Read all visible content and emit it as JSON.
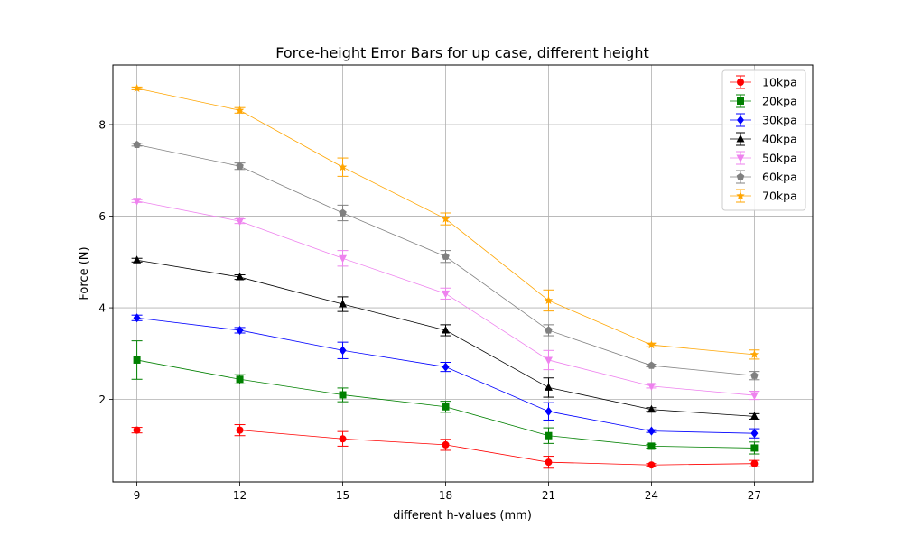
{
  "chart_data": {
    "type": "line",
    "title": "Force-height Error Bars for up case, different height",
    "xlabel": "different h-values (mm)",
    "ylabel": "Force (N)",
    "x": [
      9,
      12,
      15,
      18,
      21,
      24,
      27
    ],
    "x_ticks": [
      "9",
      "12",
      "15",
      "18",
      "21",
      "24",
      "27"
    ],
    "y_ticks": [
      "2",
      "4",
      "6",
      "8"
    ],
    "xlim": [
      8.3,
      28.7
    ],
    "ylim": [
      0.2,
      9.3
    ],
    "grid": true,
    "legend_position": "top-right",
    "series": [
      {
        "name": "10kpa",
        "color": "#ff0000",
        "marker": "circle",
        "values": [
          1.33,
          1.33,
          1.14,
          1.01,
          0.63,
          0.57,
          0.6
        ],
        "errors": [
          0.06,
          0.12,
          0.16,
          0.12,
          0.13,
          0.03,
          0.07
        ]
      },
      {
        "name": "20kpa",
        "color": "#008000",
        "marker": "square",
        "values": [
          2.86,
          2.44,
          2.1,
          1.84,
          1.21,
          0.98,
          0.94
        ],
        "errors": [
          0.42,
          0.1,
          0.15,
          0.12,
          0.17,
          0.04,
          0.13
        ]
      },
      {
        "name": "30kpa",
        "color": "#0000ff",
        "marker": "diamond",
        "values": [
          3.78,
          3.51,
          3.07,
          2.71,
          1.74,
          1.31,
          1.26
        ],
        "errors": [
          0.06,
          0.06,
          0.18,
          0.1,
          0.19,
          0.03,
          0.1
        ]
      },
      {
        "name": "40kpa",
        "color": "#000000",
        "marker": "triangle-up",
        "values": [
          5.04,
          4.67,
          4.08,
          3.51,
          2.26,
          1.78,
          1.63
        ],
        "errors": [
          0.04,
          0.05,
          0.16,
          0.12,
          0.21,
          0.04,
          0.06
        ]
      },
      {
        "name": "50kpa",
        "color": "#ee82ee",
        "marker": "triangle-down",
        "values": [
          6.33,
          5.89,
          5.08,
          4.31,
          2.86,
          2.29,
          2.09
        ],
        "errors": [
          0.03,
          0.05,
          0.17,
          0.12,
          0.21,
          0.04,
          0.09
        ]
      },
      {
        "name": "60kpa",
        "color": "#808080",
        "marker": "pentagon",
        "values": [
          7.56,
          7.09,
          6.07,
          5.12,
          3.51,
          2.74,
          2.52
        ],
        "errors": [
          0.03,
          0.07,
          0.17,
          0.13,
          0.12,
          0.03,
          0.09
        ]
      },
      {
        "name": "70kpa",
        "color": "#ffa500",
        "marker": "star",
        "values": [
          8.79,
          8.31,
          7.07,
          5.94,
          4.16,
          3.19,
          2.98
        ],
        "errors": [
          0.03,
          0.06,
          0.2,
          0.13,
          0.23,
          0.04,
          0.1
        ]
      }
    ]
  }
}
